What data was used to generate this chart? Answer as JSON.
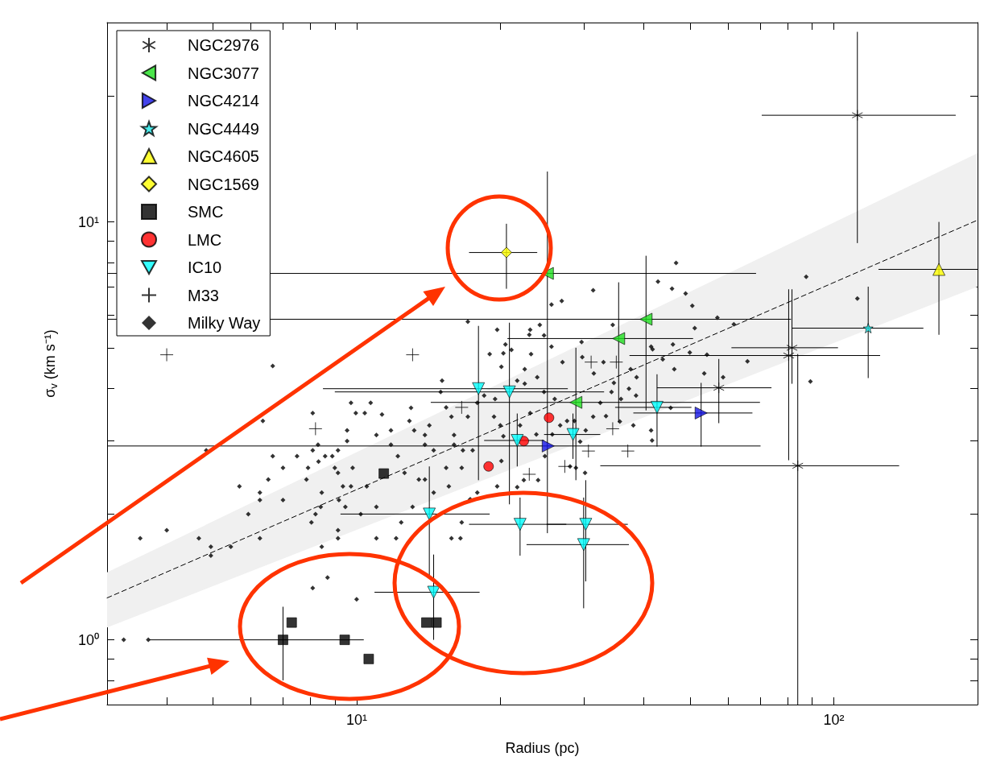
{
  "chart_data": {
    "type": "scatter",
    "xlabel": "Radius (pc)",
    "ylabel": "σ$_{v}$ (km s⁻¹)",
    "log": "xy",
    "grid": false,
    "legend": "top left",
    "xlim": [
      3,
      200
    ],
    "ylim": [
      0.7,
      30
    ],
    "xticks": [
      {
        "value": 3,
        "label": null
      },
      {
        "value": 4,
        "label": null
      },
      {
        "value": 5,
        "label": null
      },
      {
        "value": 6,
        "label": null
      },
      {
        "value": 7,
        "label": null
      },
      {
        "value": 8,
        "label": null
      },
      {
        "value": 9,
        "label": null
      },
      {
        "value": 10,
        "label": "10¹"
      },
      {
        "value": 20,
        "label": null
      },
      {
        "value": 30,
        "label": null
      },
      {
        "value": 40,
        "label": null
      },
      {
        "value": 50,
        "label": null
      },
      {
        "value": 60,
        "label": null
      },
      {
        "value": 70,
        "label": null
      },
      {
        "value": 80,
        "label": null
      },
      {
        "value": 90,
        "label": null
      },
      {
        "value": 100,
        "label": "10²"
      },
      {
        "value": 200,
        "label": null
      }
    ],
    "yticks": [
      {
        "value": 0.7,
        "label": null
      },
      {
        "value": 0.8,
        "label": null
      },
      {
        "value": 0.9,
        "label": null
      },
      {
        "value": 1,
        "label": "10⁰"
      },
      {
        "value": 2,
        "label": null
      },
      {
        "value": 3,
        "label": null
      },
      {
        "value": 4,
        "label": null
      },
      {
        "value": 5,
        "label": null
      },
      {
        "value": 6,
        "label": null
      },
      {
        "value": 7,
        "label": null
      },
      {
        "value": 8,
        "label": null
      },
      {
        "value": 9,
        "label": null
      },
      {
        "value": 10,
        "label": "10¹"
      },
      {
        "value": 20,
        "label": null
      },
      {
        "value": 30,
        "label": null
      }
    ],
    "series": [
      {
        "type": "line",
        "color": "#000000",
        "line_style": "dashed",
        "marker": "none",
        "x": [
          3,
          200
        ],
        "values": [
          1.26,
          10.1
        ],
        "lower": [
          1.07,
          7.0
        ],
        "upper": [
          1.45,
          14.6
        ]
      },
      {
        "name": "NGC2976",
        "color": "#000000",
        "marker": "cross",
        "x": [
          112,
          84.0,
          81.7,
          80.4,
          57.4
        ],
        "values": [
          18.0,
          2.61,
          5.0,
          4.79,
          4.01
        ],
        "errors": [
          [
            8.9,
            28.5
          ],
          [
            0.7,
            4.83
          ],
          [
            4.1,
            6.9
          ],
          [
            2.69,
            6.9
          ],
          [
            3.3,
            4.7
          ]
        ],
        "xerrors": [
          [
            70.6,
            180
          ],
          [
            32.4,
            137
          ],
          [
            61,
            102
          ],
          [
            37.3,
            125
          ],
          [
            42.6,
            74
          ]
        ]
      },
      {
        "name": "NGC3077",
        "color": "#1ee01e",
        "marker": "triangle-left",
        "x": [
          25.1,
          40.4,
          35.4,
          28.8
        ],
        "values": [
          7.53,
          5.85,
          5.26,
          3.7
        ],
        "errors": [
          [
            1.8,
            13.2
          ],
          [
            3.54,
            8.3
          ],
          [
            3.31,
            7.17
          ],
          [
            2.41,
            5.0
          ]
        ],
        "xerrors": [
          [
            3,
            68.7
          ],
          [
            3,
            81.3
          ],
          [
            20.7,
            50.7
          ],
          [
            14.3,
            70
          ]
        ]
      },
      {
        "name": "NGC4214",
        "color": "#1414e6",
        "marker": "triangle-right",
        "x": [
          25.2,
          52.7
        ],
        "values": [
          2.91,
          3.49
        ],
        "errors": [
          null,
          [
            2.9,
            4.12
          ]
        ],
        "xerrors": [
          [
            3,
            70.2
          ],
          [
            38.0,
            67.5
          ]
        ]
      },
      {
        "name": "NGC4449",
        "color": "#1ee6e6",
        "marker": "star",
        "x": [
          118
        ],
        "values": [
          5.57
        ],
        "errors": [
          [
            4.23,
            7.0
          ]
        ],
        "xerrors": [
          [
            81.7,
            154
          ]
        ]
      },
      {
        "name": "NGC4605",
        "color": "#ffff00",
        "marker": "triangle",
        "x": [
          166
        ],
        "values": [
          7.7
        ],
        "errors": [
          [
            5.37,
            10.0
          ]
        ],
        "xerrors": [
          [
            124,
            200
          ]
        ]
      },
      {
        "name": "NGC1569",
        "color": "#ffff00",
        "marker": "diamond",
        "x": [
          20.6
        ],
        "values": [
          8.45
        ],
        "errors": [
          [
            6.92,
            9.9
          ]
        ],
        "xerrors": [
          [
            17.2,
            23.9
          ]
        ]
      },
      {
        "name": "SMC",
        "color": "#000000",
        "marker": "square",
        "x": [
          11.4,
          7.01,
          7.31,
          9.44,
          10.6,
          14.0,
          14.7
        ],
        "values": [
          2.5,
          1.0,
          1.1,
          1.0,
          0.9,
          1.1,
          1.1
        ],
        "errors": [
          null,
          [
            0.8,
            1.2
          ],
          null,
          null,
          null,
          null,
          null
        ],
        "xerrors": [
          null,
          [
            3.68,
            10.35
          ],
          null,
          null,
          null,
          null,
          null
        ]
      },
      {
        "name": "LMC",
        "color": "#ff0000",
        "marker": "circle",
        "x": [
          18.9,
          22.4,
          25.3
        ],
        "values": [
          2.6,
          2.99,
          3.4
        ]
      },
      {
        "name": "IC10",
        "color": "#00ffff",
        "marker": "triangle-down",
        "x": [
          18.0,
          20.9,
          21.7,
          28.4,
          42.6,
          14.2,
          14.5,
          22.0,
          30.2,
          29.9
        ],
        "values": [
          3.99,
          3.92,
          3.0,
          3.1,
          3.6,
          2.0,
          1.3,
          1.89,
          1.89,
          1.69
        ],
        "errors": [
          [
            2.41,
            5.64
          ],
          [
            2.11,
            5.74
          ],
          [
            2.6,
            3.48
          ],
          [
            2.71,
            3.48
          ],
          [
            2.9,
            4.32
          ],
          [
            1.41,
            2.6
          ],
          [
            1.0,
            1.6
          ],
          [
            1.59,
            2.19
          ],
          [
            1.38,
            2.41
          ],
          [
            1.19,
            2.19
          ]
        ],
        "xerrors": [
          [
            8.5,
            27.7
          ],
          [
            9.0,
            33.0
          ],
          [
            18.5,
            24.7
          ],
          [
            24.7,
            32.4
          ],
          [
            34.8,
            50.3
          ],
          [
            9.25,
            19.0
          ],
          [
            10.9,
            18.1
          ],
          [
            17.2,
            27.5
          ],
          [
            25.0,
            37.0
          ],
          [
            22.7,
            37.2
          ]
        ]
      },
      {
        "name": "M33",
        "color": "#000000",
        "x": [
          4.0,
          13.1,
          8.2,
          16.6,
          23.0,
          31.0,
          35.0,
          34.4,
          30.6,
          37.0,
          27.3
        ],
        "values": [
          4.81,
          4.81,
          3.2,
          3.6,
          2.49,
          4.62,
          4.62,
          3.2,
          2.83,
          2.83,
          2.6
        ]
      },
      {
        "name": "Milky Way",
        "color": "#000000",
        "marker": "diamond",
        "x": [
          3.25,
          3.66,
          3.52,
          4.0,
          4.67,
          4.95,
          4.95,
          5.45,
          6.27,
          4.84,
          5.68,
          5.93,
          6.27,
          6.27,
          6.36,
          6.67,
          6.53,
          6.67,
          7.01,
          7.01,
          7.5,
          7.85,
          7.91,
          8.04,
          8.09,
          8.09,
          8.09,
          8.2,
          8.3,
          8.32,
          8.41,
          8.45,
          8.45,
          8.59,
          8.69,
          8.89,
          9.0,
          9.14,
          9.14,
          9.14,
          9.14,
          9.18,
          9.36,
          9.47,
          9.55,
          9.55,
          9.73,
          9.73,
          9.81,
          9.96,
          10.0,
          10.2,
          10.4,
          10.5,
          10.7,
          11.0,
          11.0,
          11.0,
          11.3,
          11.8,
          11.8,
          12.1,
          12.2,
          12.4,
          12.6,
          12.9,
          13.0,
          13.1,
          13.2,
          13.5,
          13.9,
          13.9,
          13.9,
          14.2,
          14.5,
          14.5,
          15.0,
          15.1,
          15.4,
          15.4,
          15.6,
          15.8,
          15.8,
          16.0,
          16.0,
          16.5,
          16.6,
          16.6,
          16.7,
          17.1,
          17.1,
          17.3,
          17.5,
          17.9,
          17.9,
          18.5,
          19.0,
          19.4,
          19.5,
          19.7,
          19.7,
          20.0,
          20.1,
          20.1,
          20.3,
          20.3,
          20.5,
          21.1,
          21.7,
          21.7,
          22.0,
          22.4,
          22.5,
          22.5,
          23.0,
          23.1,
          23.1,
          23.2,
          23.8,
          23.9,
          24.0,
          24.2,
          24.7,
          24.7,
          24.8,
          25.6,
          25.6,
          25.7,
          26.0,
          26.7,
          26.9,
          27.0,
          27.6,
          28.0,
          28.6,
          28.8,
          29.4,
          29.6,
          29.7,
          30.1,
          30.2,
          31.3,
          31.3,
          31.4,
          32.4,
          32.9,
          33.3,
          34.2,
          34.4,
          34.6,
          35.6,
          35.8,
          37.2,
          37.5,
          38.0,
          38.5,
          38.6,
          41.4,
          41.4,
          41.6,
          41.7,
          42.8,
          43.8,
          45.5,
          45.8,
          46.0,
          46.3,
          46.7,
          48.9,
          49.9,
          50.5,
          51.1,
          53.5,
          54.2,
          57.0,
          58.6,
          61.7,
          65.9,
          87.5,
          89.3,
          112,
          17.2
        ],
        "values": [
          1.0,
          1.0,
          1.75,
          1.83,
          1.75,
          1.67,
          1.59,
          1.67,
          1.75,
          2.84,
          2.33,
          2.0,
          2.25,
          2.16,
          3.34,
          4.52,
          2.42,
          2.75,
          2.58,
          2.16,
          2.75,
          2.42,
          2.58,
          1.91,
          3.49,
          2.84,
          1.33,
          2.0,
          2.93,
          2.67,
          2.08,
          2.25,
          1.67,
          2.75,
          1.41,
          2.75,
          2.58,
          2.84,
          2.51,
          1.83,
          1.75,
          2.16,
          2.33,
          2.08,
          3.17,
          2.99,
          3.69,
          2.33,
          2.58,
          3.49,
          1.25,
          2.0,
          3.49,
          2.33,
          3.69,
          2.08,
          3.09,
          1.75,
          3.46,
          3.17,
          2.93,
          1.75,
          2.75,
          1.91,
          2.51,
          3.34,
          3.59,
          2.08,
          3.17,
          2.42,
          2.93,
          2.42,
          3.09,
          3.26,
          2.84,
          2.25,
          3.92,
          4.17,
          3.6,
          2.58,
          2.33,
          3.42,
          1.75,
          3.09,
          2.93,
          1.75,
          2.58,
          1.91,
          2.84,
          5.77,
          3.42,
          2.17,
          2.84,
          3.69,
          2.25,
          3.84,
          4.83,
          3.42,
          3.77,
          5.52,
          2.33,
          3.26,
          4.5,
          2.68,
          4.85,
          3.07,
          5.09,
          4.94,
          4.17,
          2.32,
          3.26,
          2.41,
          4.44,
          4.1,
          5.37,
          5.52,
          3.49,
          4.83,
          3.1,
          4.25,
          2.41,
          5.67,
          5.35,
          3.92,
          2.75,
          6.34,
          5.03,
          3.1,
          3.77,
          3.26,
          6.47,
          4.62,
          3.34,
          2.6,
          3.34,
          2.58,
          2.98,
          5.16,
          4.75,
          2.51,
          3.17,
          6.86,
          3.42,
          4.34,
          3.69,
          4.62,
          3.43,
          3.92,
          5.67,
          4.12,
          3.33,
          3.77,
          3.99,
          4.44,
          3.26,
          3.84,
          4.25,
          5.03,
          3.17,
          3.0,
          4.96,
          7.2,
          4.69,
          3.59,
          6.92,
          5.09,
          4.44,
          7.98,
          6.74,
          4.87,
          6.3,
          5.57,
          4.34,
          4.81,
          5.9,
          4.25,
          5.69,
          4.64,
          7.39,
          4.15,
          6.56,
          2.15
        ]
      }
    ]
  }
}
